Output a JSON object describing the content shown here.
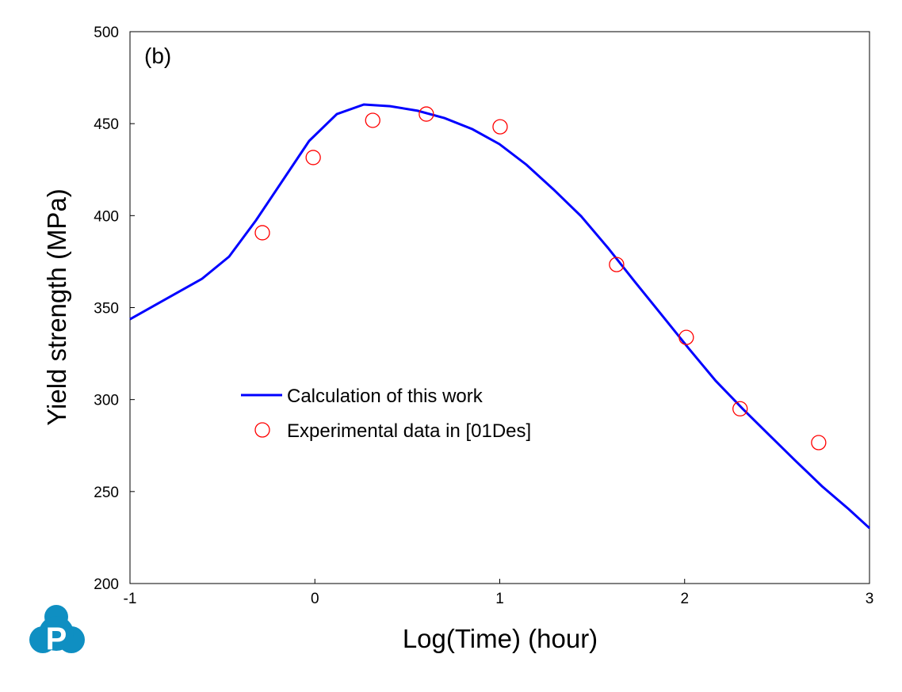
{
  "chart_data": {
    "type": "line",
    "panel_label": "(b)",
    "xlabel": "Log(Time) (hour)",
    "ylabel": "Yield strength (MPa)",
    "xlim": [
      -1,
      3
    ],
    "ylim": [
      200,
      500
    ],
    "xticks": [
      -1,
      0,
      1,
      2,
      3
    ],
    "yticks": [
      200,
      250,
      300,
      350,
      400,
      450,
      500
    ],
    "grid": false,
    "legend_position": "center-left",
    "series": [
      {
        "name": "Calculation of this work",
        "kind": "line",
        "color": "#0000ff",
        "x": [
          -1,
          -0.61,
          -0.464,
          -0.318,
          -0.031,
          0.119,
          0.265,
          0.407,
          0.556,
          0.702,
          0.852,
          0.998,
          1.144,
          1.29,
          1.44,
          1.585,
          1.731,
          1.877,
          2.022,
          2.168,
          2.314,
          2.456,
          2.6,
          2.743,
          2.888,
          3.0
        ],
        "y": [
          343.7,
          365.7,
          377.7,
          397.5,
          440.6,
          455.2,
          460.4,
          459.5,
          457,
          453,
          447,
          438.9,
          427.7,
          414.3,
          399.7,
          382.5,
          364,
          345.9,
          327.8,
          310.2,
          295,
          280.9,
          266.7,
          252.9,
          240.4,
          230.1
        ]
      },
      {
        "name": "Experimental data in [01Des]",
        "kind": "scatter",
        "color": "#ff0000",
        "x": [
          -0.284,
          -0.009,
          0.313,
          0.603,
          1.002,
          1.632,
          2.009,
          2.3,
          2.725
        ],
        "y": [
          390.7,
          431.6,
          451.8,
          455.2,
          448.3,
          373.4,
          333.8,
          295,
          276.6
        ]
      }
    ]
  },
  "logo": {
    "letter": "P",
    "color": "#0f8fc2"
  }
}
